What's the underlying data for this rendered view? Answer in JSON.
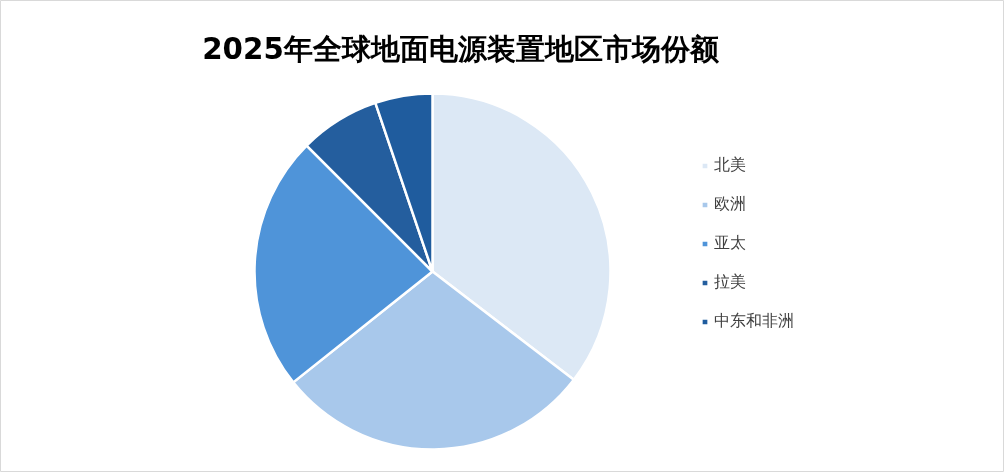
{
  "chart_data": {
    "type": "pie",
    "title": "2025年全球地面电源装置地区市场份额",
    "categories": [
      "北美",
      "欧洲",
      "亚太",
      "拉美",
      "中东和非洲"
    ],
    "values": [
      35.4,
      28.9,
      23.2,
      7.3,
      5.2
    ],
    "colors": [
      "#dce8f5",
      "#a8c8eb",
      "#4f94d9",
      "#245e9e",
      "#1f5c9e"
    ],
    "legend": "right"
  }
}
